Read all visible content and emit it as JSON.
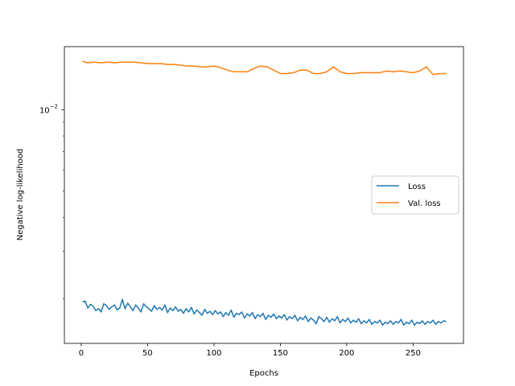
{
  "chart_data": {
    "type": "line",
    "xlabel": "Epochs",
    "ylabel": "Negative log-likelihood",
    "x_ticks": [
      {
        "value": 0,
        "label": "0"
      },
      {
        "value": 50,
        "label": "50"
      },
      {
        "value": 100,
        "label": "100"
      },
      {
        "value": 150,
        "label": "150"
      },
      {
        "value": 200,
        "label": "200"
      },
      {
        "value": 250,
        "label": "250"
      }
    ],
    "y_ticks": [
      {
        "value": 0.01,
        "base": "10",
        "exponent": "−2"
      }
    ],
    "xlim": [
      -12.7,
      288
    ],
    "ylim": [
      0.00137,
      0.0171
    ],
    "y_scale": "log",
    "grid": false,
    "legend": {
      "position": "center-right"
    },
    "series": [
      {
        "name": "Loss",
        "color": "#1f77b4",
        "x": [
          1,
          3,
          5,
          7,
          9,
          11,
          13,
          15,
          17,
          19,
          21,
          23,
          25,
          27,
          29,
          31,
          33,
          35,
          37,
          39,
          41,
          43,
          45,
          47,
          49,
          51,
          53,
          55,
          57,
          59,
          61,
          63,
          65,
          67,
          69,
          71,
          73,
          75,
          77,
          79,
          81,
          83,
          85,
          87,
          89,
          91,
          93,
          95,
          97,
          99,
          101,
          103,
          105,
          107,
          109,
          111,
          113,
          115,
          117,
          119,
          121,
          123,
          125,
          127,
          129,
          131,
          133,
          135,
          137,
          139,
          141,
          143,
          145,
          147,
          149,
          151,
          153,
          155,
          157,
          159,
          161,
          163,
          165,
          167,
          169,
          171,
          173,
          175,
          177,
          179,
          181,
          183,
          185,
          187,
          189,
          191,
          193,
          195,
          197,
          199,
          201,
          203,
          205,
          207,
          209,
          211,
          213,
          215,
          217,
          219,
          221,
          223,
          225,
          227,
          229,
          231,
          233,
          235,
          237,
          239,
          241,
          243,
          245,
          247,
          249,
          251,
          253,
          255,
          257,
          259,
          261,
          263,
          265,
          267,
          269,
          271,
          273,
          275
        ],
        "values": [
          0.00195,
          0.00196,
          0.00185,
          0.00191,
          0.00188,
          0.00181,
          0.00184,
          0.00179,
          0.00192,
          0.00189,
          0.00183,
          0.00187,
          0.0019,
          0.00182,
          0.00185,
          0.00199,
          0.00184,
          0.00193,
          0.00187,
          0.00181,
          0.0019,
          0.00185,
          0.00179,
          0.00192,
          0.00187,
          0.00184,
          0.0018,
          0.00189,
          0.00183,
          0.00186,
          0.00182,
          0.0019,
          0.00178,
          0.00185,
          0.00181,
          0.00187,
          0.0018,
          0.00183,
          0.00177,
          0.00184,
          0.00179,
          0.00186,
          0.00176,
          0.00182,
          0.00178,
          0.00174,
          0.00183,
          0.00177,
          0.0018,
          0.00175,
          0.00181,
          0.00176,
          0.00179,
          0.00172,
          0.00178,
          0.00174,
          0.00182,
          0.00171,
          0.00177,
          0.00175,
          0.00179,
          0.0017,
          0.00176,
          0.00173,
          0.00178,
          0.00169,
          0.00175,
          0.00172,
          0.00177,
          0.00168,
          0.00174,
          0.00171,
          0.00176,
          0.00169,
          0.00173,
          0.0017,
          0.00175,
          0.00167,
          0.00172,
          0.00169,
          0.00174,
          0.00166,
          0.00171,
          0.00168,
          0.00173,
          0.00165,
          0.0017,
          0.00167,
          0.00162,
          0.00172,
          0.00169,
          0.00165,
          0.00171,
          0.00164,
          0.00169,
          0.00166,
          0.00172,
          0.00163,
          0.00168,
          0.00165,
          0.0017,
          0.00163,
          0.00167,
          0.00164,
          0.00169,
          0.00162,
          0.00166,
          0.00163,
          0.00168,
          0.00161,
          0.00165,
          0.00163,
          0.00167,
          0.0016,
          0.00164,
          0.00162,
          0.00166,
          0.00161,
          0.00165,
          0.00163,
          0.00168,
          0.0016,
          0.00164,
          0.00162,
          0.00167,
          0.0016,
          0.00164,
          0.00162,
          0.00166,
          0.00161,
          0.00165,
          0.00163,
          0.00167,
          0.00161,
          0.00165,
          0.00163,
          0.00166,
          0.00165
        ]
      },
      {
        "name": "Val. loss",
        "color": "#ff7f0e",
        "x": [
          1,
          5,
          10,
          15,
          20,
          25,
          30,
          35,
          40,
          45,
          50,
          55,
          60,
          65,
          70,
          75,
          80,
          85,
          90,
          95,
          100,
          105,
          110,
          115,
          120,
          125,
          130,
          135,
          140,
          145,
          150,
          155,
          160,
          165,
          170,
          175,
          180,
          185,
          190,
          195,
          200,
          205,
          210,
          215,
          220,
          225,
          230,
          235,
          240,
          245,
          250,
          255,
          260,
          265,
          270,
          275
        ],
        "values": [
          0.0151,
          0.0149,
          0.015,
          0.0149,
          0.015,
          0.0149,
          0.015,
          0.015,
          0.015,
          0.0149,
          0.0148,
          0.0148,
          0.0148,
          0.0147,
          0.0147,
          0.0146,
          0.0145,
          0.0145,
          0.0144,
          0.0144,
          0.0145,
          0.0143,
          0.014,
          0.0138,
          0.0138,
          0.0138,
          0.0142,
          0.0145,
          0.0144,
          0.014,
          0.0136,
          0.0136,
          0.0137,
          0.014,
          0.014,
          0.0136,
          0.0136,
          0.0138,
          0.0144,
          0.0138,
          0.0136,
          0.0136,
          0.0137,
          0.0137,
          0.0137,
          0.0137,
          0.0139,
          0.0138,
          0.0139,
          0.0138,
          0.0137,
          0.0139,
          0.0144,
          0.0135,
          0.0136,
          0.0136
        ]
      }
    ]
  }
}
